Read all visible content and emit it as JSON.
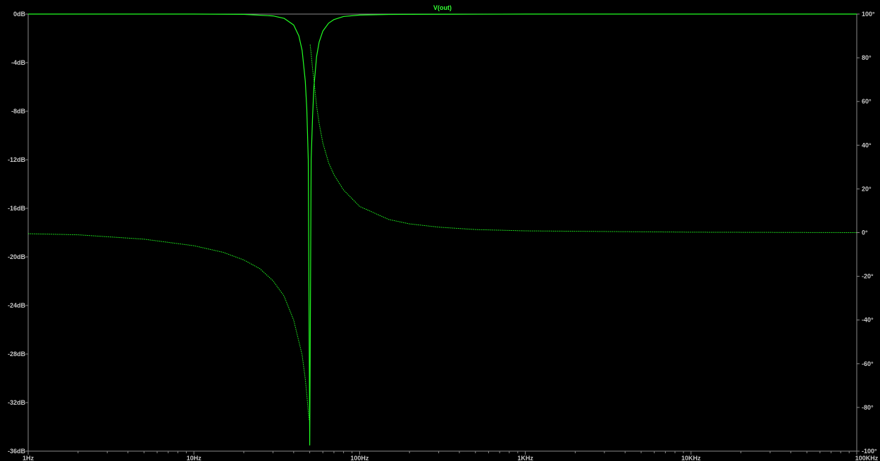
{
  "chart_data": {
    "type": "line",
    "title": "",
    "trace_label": "V(out)",
    "trace_color": "#22ff22",
    "background_color": "#000000",
    "axis_color": "#8a8a8a",
    "x_scale": "log",
    "x_unit": "Hz",
    "xlim": [
      1,
      100000
    ],
    "x_ticks": [
      {
        "value": 1,
        "label": "1Hz"
      },
      {
        "value": 10,
        "label": "10Hz"
      },
      {
        "value": 100,
        "label": "100Hz"
      },
      {
        "value": 1000,
        "label": "1KHz"
      },
      {
        "value": 10000,
        "label": "10KHz"
      },
      {
        "value": 100000,
        "label": "100KHz"
      }
    ],
    "y_left": {
      "unit": "dB",
      "ylim": [
        -36,
        0
      ],
      "ticks": [
        {
          "value": 0,
          "label": "0dB"
        },
        {
          "value": -4,
          "label": "-4dB"
        },
        {
          "value": -8,
          "label": "-8dB"
        },
        {
          "value": -12,
          "label": "-12dB"
        },
        {
          "value": -16,
          "label": "-16dB"
        },
        {
          "value": -20,
          "label": "-20dB"
        },
        {
          "value": -24,
          "label": "-24dB"
        },
        {
          "value": -28,
          "label": "-28dB"
        },
        {
          "value": -32,
          "label": "-32dB"
        },
        {
          "value": -36,
          "label": "-36dB"
        }
      ]
    },
    "y_right": {
      "unit": "°",
      "ylim": [
        -100,
        100
      ],
      "ticks": [
        {
          "value": 100,
          "label": "100°"
        },
        {
          "value": 80,
          "label": "80°"
        },
        {
          "value": 60,
          "label": "60°"
        },
        {
          "value": 40,
          "label": "40°"
        },
        {
          "value": 20,
          "label": "20°"
        },
        {
          "value": 0,
          "label": "0°"
        },
        {
          "value": -20,
          "label": "-20°"
        },
        {
          "value": -40,
          "label": "-40°"
        },
        {
          "value": -60,
          "label": "-60°"
        },
        {
          "value": -80,
          "label": "-80°"
        },
        {
          "value": -100,
          "label": "-100°"
        }
      ]
    },
    "grid": false,
    "series": [
      {
        "quantity": "magnitude",
        "axis": "left",
        "x": [
          1,
          5,
          10,
          20,
          30,
          35,
          40,
          43,
          45,
          47,
          48,
          49,
          50,
          51,
          52,
          53,
          55,
          57,
          60,
          65,
          70,
          80,
          100,
          150,
          200,
          500,
          1000,
          10000,
          100000
        ],
        "y": [
          0,
          0,
          0,
          -0.02,
          -0.15,
          -0.35,
          -0.9,
          -1.8,
          -3.0,
          -5.5,
          -7.8,
          -12,
          -35.5,
          -12,
          -8.5,
          -6.0,
          -3.5,
          -2.3,
          -1.4,
          -0.75,
          -0.45,
          -0.2,
          -0.08,
          -0.03,
          -0.02,
          -0.01,
          0,
          0,
          0
        ]
      },
      {
        "quantity": "phase",
        "axis": "right",
        "x": [
          1,
          2,
          5,
          10,
          15,
          20,
          25,
          30,
          35,
          40,
          45,
          47,
          48,
          49,
          49.7,
          50.3,
          51,
          52,
          53,
          55,
          57,
          60,
          65,
          70,
          80,
          100,
          150,
          200,
          300,
          500,
          1000,
          10000,
          100000
        ],
        "y": [
          -0.5,
          -1,
          -3,
          -6,
          -9,
          -12.5,
          -16.5,
          -22,
          -29,
          -40,
          -56,
          -67,
          -74,
          -82,
          -86,
          86,
          82,
          75,
          70,
          58,
          50,
          41,
          32,
          26.5,
          19.5,
          12,
          6,
          4,
          2.5,
          1.4,
          0.8,
          0.2,
          0
        ]
      }
    ]
  }
}
